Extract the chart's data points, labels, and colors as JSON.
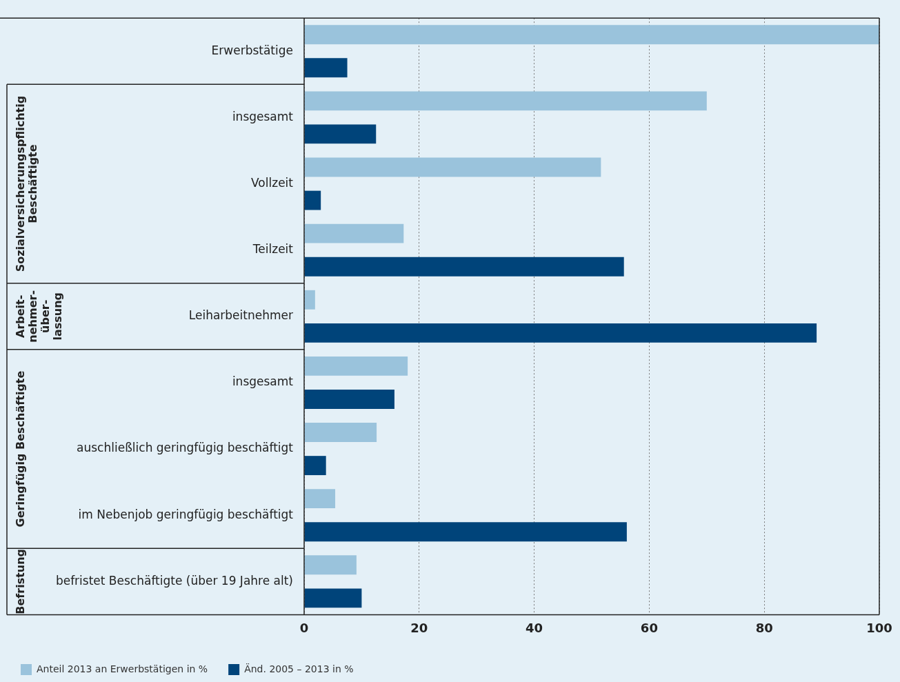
{
  "chart_data": {
    "type": "bar",
    "orientation": "horizontal",
    "categories": [
      "Erwerbstätige",
      "insgesamt",
      "Vollzeit",
      "Teilzeit",
      "Leiharbeitnehmer",
      "insgesamt",
      "auschließlich geringfügig beschäftigt",
      "im Nebenjob geringfügig beschäftigt",
      "befristet Beschäftigte (über 19 Jahre alt)"
    ],
    "series": [
      {
        "name": "Anteil 2013 an Erwerbstätigen in %",
        "color": "#9ac3dc",
        "values": [
          100,
          70,
          51.6,
          17.3,
          1.9,
          18,
          12.6,
          5.4,
          9.1
        ]
      },
      {
        "name": "Änd. 2005 – 2013 in %",
        "color": "#00447a",
        "values": [
          7.5,
          12.5,
          2.9,
          55.6,
          89.1,
          15.7,
          3.8,
          56.1,
          10
        ]
      }
    ],
    "xlim": [
      0,
      100
    ],
    "xticks": [
      0,
      20,
      40,
      60,
      80,
      100
    ],
    "grid": "x",
    "legend": "bottom left",
    "annotations": [
      "Sozialversicherungspflichtig\nBeschäftigte",
      "Arbeit-\nnehmer-\nüber-\nlassung",
      "Geringfügig Beschäftigte",
      "Befristung"
    ]
  }
}
